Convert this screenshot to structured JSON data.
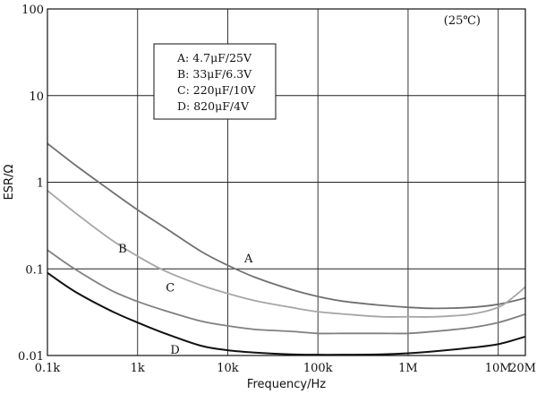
{
  "chart_data": {
    "type": "line",
    "xscale": "log",
    "yscale": "log",
    "xlim": [
      100,
      20000000
    ],
    "ylim": [
      0.01,
      100
    ],
    "grid": true,
    "xlabel": "Frequency/Hz",
    "ylabel": "ESR/Ω",
    "annotation": "(25℃)",
    "xticks": [
      {
        "value": 100,
        "label": "0.1k"
      },
      {
        "value": 1000,
        "label": "1k"
      },
      {
        "value": 10000,
        "label": "10k"
      },
      {
        "value": 100000,
        "label": "100k"
      },
      {
        "value": 1000000,
        "label": "1M"
      },
      {
        "value": 10000000,
        "label": "10M"
      },
      {
        "value": 20000000,
        "label": "20M"
      }
    ],
    "yticks": [
      {
        "value": 0.01,
        "label": "0.01"
      },
      {
        "value": 0.1,
        "label": "0.1"
      },
      {
        "value": 1,
        "label": "1"
      },
      {
        "value": 10,
        "label": "10"
      },
      {
        "value": 100,
        "label": "100"
      }
    ],
    "legend": {
      "placement": "upper-center",
      "entries": [
        "A: 4.7μF/25V",
        "B: 33μF/6.3V",
        "C: 220μF/10V",
        "D: 820μF/4V"
      ]
    },
    "series": [
      {
        "name": "A",
        "color": "#707070",
        "label_at": [
          17000,
          0.13
        ],
        "x": [
          100,
          200,
          500,
          1000,
          2000,
          5000,
          10000,
          20000,
          50000,
          100000,
          200000,
          500000,
          1000000,
          2000000,
          5000000,
          10000000,
          20000000
        ],
        "y": [
          2.8,
          1.6,
          0.8,
          0.48,
          0.3,
          0.16,
          0.11,
          0.08,
          0.058,
          0.048,
          0.042,
          0.038,
          0.036,
          0.035,
          0.036,
          0.039,
          0.046
        ]
      },
      {
        "name": "B",
        "color": "#a6a6a6",
        "label_at": [
          680,
          0.17
        ],
        "x": [
          100,
          200,
          500,
          1000,
          2000,
          5000,
          10000,
          20000,
          50000,
          100000,
          200000,
          500000,
          1000000,
          2000000,
          5000000,
          10000000,
          15000000,
          20000000
        ],
        "y": [
          0.8,
          0.45,
          0.22,
          0.14,
          0.095,
          0.065,
          0.052,
          0.043,
          0.036,
          0.032,
          0.03,
          0.028,
          0.028,
          0.028,
          0.03,
          0.036,
          0.048,
          0.062
        ]
      },
      {
        "name": "C",
        "color": "#808080",
        "label_at": [
          2300,
          0.06
        ],
        "x": [
          100,
          200,
          500,
          1000,
          2000,
          5000,
          10000,
          20000,
          50000,
          100000,
          200000,
          500000,
          1000000,
          2000000,
          5000000,
          10000000,
          20000000
        ],
        "y": [
          0.165,
          0.1,
          0.057,
          0.042,
          0.033,
          0.025,
          0.022,
          0.02,
          0.019,
          0.018,
          0.018,
          0.018,
          0.018,
          0.019,
          0.021,
          0.024,
          0.03
        ]
      },
      {
        "name": "D",
        "color": "#111111",
        "label_at": [
          2600,
          0.0115
        ],
        "x": [
          100,
          200,
          500,
          1000,
          2000,
          5000,
          10000,
          20000,
          50000,
          100000,
          200000,
          500000,
          1000000,
          2000000,
          5000000,
          10000000,
          20000000
        ],
        "y": [
          0.09,
          0.055,
          0.033,
          0.024,
          0.018,
          0.013,
          0.0115,
          0.0108,
          0.0103,
          0.0102,
          0.0102,
          0.0103,
          0.0106,
          0.0112,
          0.0123,
          0.0135,
          0.0165
        ]
      }
    ]
  }
}
